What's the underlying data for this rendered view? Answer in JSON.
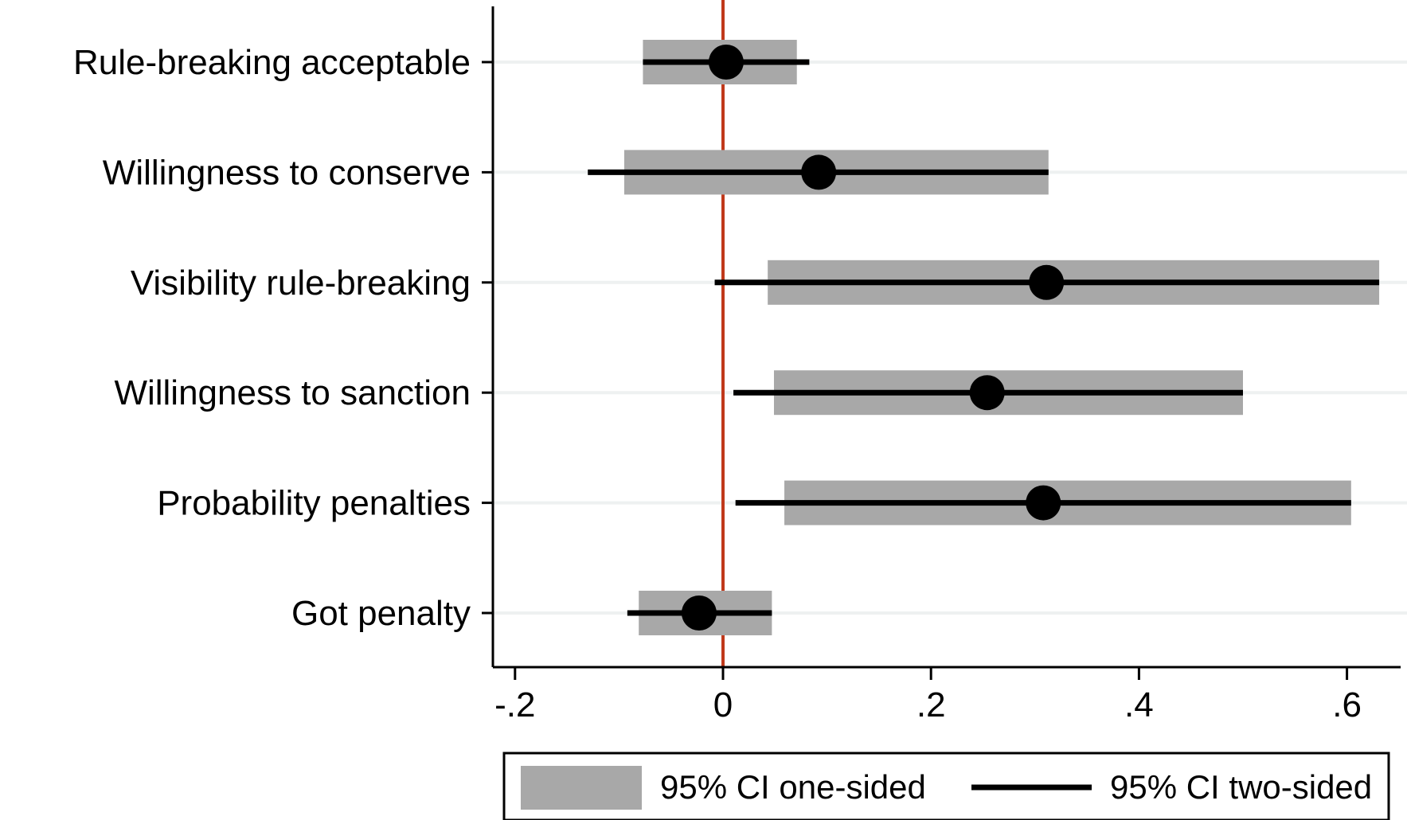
{
  "chart_data": {
    "type": "coefficient-plot",
    "orientation": "horizontal",
    "categories": [
      "Rule-breaking acceptable",
      "Willingness to conserve",
      "Visibility rule-breaking",
      "Willingness to sanction",
      "Probability penalties",
      "Got penalty"
    ],
    "estimates": [
      0.003,
      0.092,
      0.311,
      0.254,
      0.308,
      -0.023
    ],
    "ci_one_sided": [
      [
        -0.077,
        0.071
      ],
      [
        -0.095,
        0.313
      ],
      [
        0.043,
        0.631
      ],
      [
        0.049,
        0.5
      ],
      [
        0.059,
        0.604
      ],
      [
        -0.081,
        0.047
      ]
    ],
    "ci_two_sided": [
      [
        -0.077,
        0.083
      ],
      [
        -0.13,
        0.313
      ],
      [
        -0.008,
        0.631
      ],
      [
        0.01,
        0.5
      ],
      [
        0.012,
        0.604
      ],
      [
        -0.092,
        0.047
      ]
    ],
    "xlim": [
      -0.22,
      0.65
    ],
    "xticks": [
      -0.2,
      0,
      0.2,
      0.4,
      0.6
    ],
    "xtick_labels": [
      "-.2",
      "0",
      ".2",
      ".4",
      ".6"
    ],
    "reference_line": 0,
    "grid": true,
    "legend": {
      "position": "bottom",
      "entries": [
        "95% CI one-sided",
        "95% CI two-sided"
      ]
    },
    "colors": {
      "one_sided_bar": "#a8a8a8",
      "two_sided_line": "#000000",
      "estimate_marker": "#000000",
      "reference_line": "#c0391b",
      "gridline": "#eef1f1"
    },
    "title": "",
    "xlabel": "",
    "ylabel": ""
  }
}
